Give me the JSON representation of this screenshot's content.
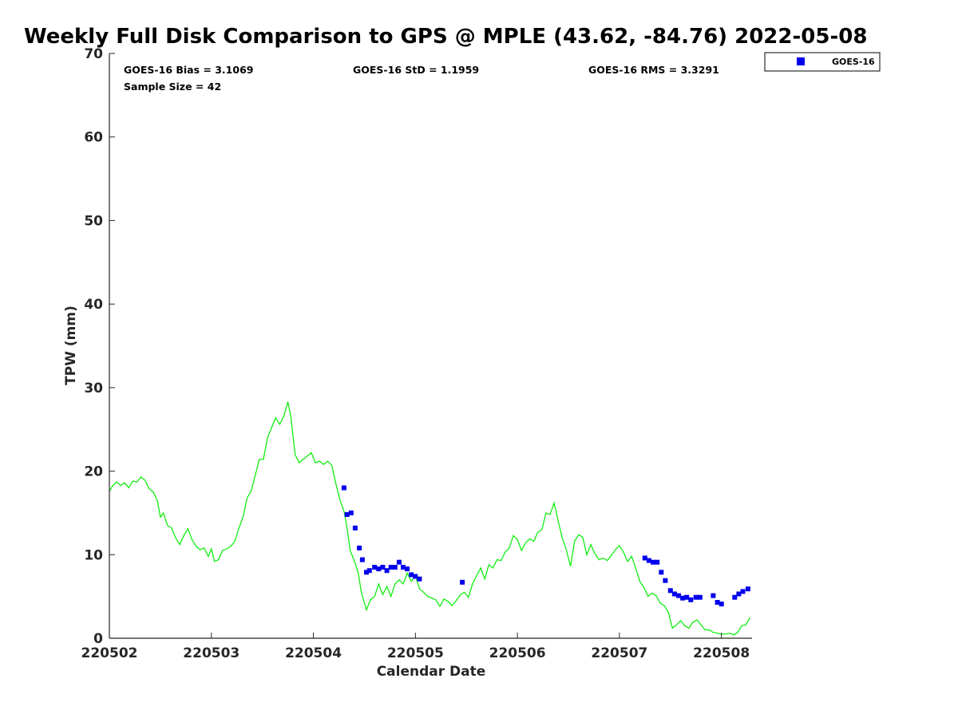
{
  "chart_data": {
    "type": "line",
    "title": "Weekly Full Disk Comparison to GPS @ MPLE (43.62, -84.76) 2022-05-08",
    "xlabel": "Calendar Date",
    "ylabel": "TPW (mm)",
    "xlim": [
      220502.0,
      220508.3
    ],
    "ylim": [
      0,
      70
    ],
    "x_ticks": [
      220502,
      220503,
      220504,
      220505,
      220506,
      220507,
      220508
    ],
    "x_tick_labels": [
      "220502",
      "220503",
      "220504",
      "220505",
      "220506",
      "220507",
      "220508"
    ],
    "y_ticks": [
      0,
      10,
      20,
      30,
      40,
      50,
      60,
      70
    ],
    "y_tick_labels": [
      "0",
      "10",
      "20",
      "30",
      "40",
      "50",
      "60",
      "70"
    ],
    "grid": false,
    "stats": {
      "bias": "GOES-16 Bias = 3.1069",
      "std": "GOES-16 StD = 1.1959",
      "rms": "GOES-16 RMS = 3.3291",
      "sample": "Sample Size = 42"
    },
    "legend": {
      "position": "top-right-outside",
      "label": "GOES-16"
    },
    "series": [
      {
        "name": "GPS",
        "kind": "line",
        "color": "#00ee00",
        "points": [
          [
            220502.0,
            17.6
          ],
          [
            220502.03,
            18.2
          ],
          [
            220502.07,
            18.7
          ],
          [
            220502.11,
            18.3
          ],
          [
            220502.15,
            18.6
          ],
          [
            220502.19,
            18.0
          ],
          [
            220502.23,
            18.8
          ],
          [
            220502.27,
            18.7
          ],
          [
            220502.31,
            19.3
          ],
          [
            220502.35,
            18.9
          ],
          [
            220502.39,
            17.9
          ],
          [
            220502.43,
            17.5
          ],
          [
            220502.47,
            16.5
          ],
          [
            220502.5,
            14.5
          ],
          [
            220502.53,
            15.0
          ],
          [
            220502.57,
            13.5
          ],
          [
            220502.61,
            13.2
          ],
          [
            220502.65,
            12.0
          ],
          [
            220502.69,
            11.2
          ],
          [
            220502.73,
            12.3
          ],
          [
            220502.77,
            13.1
          ],
          [
            220502.81,
            11.8
          ],
          [
            220502.85,
            11.0
          ],
          [
            220502.89,
            10.6
          ],
          [
            220502.93,
            10.8
          ],
          [
            220502.97,
            9.8
          ],
          [
            220503.0,
            10.7
          ],
          [
            220503.03,
            9.2
          ],
          [
            220503.07,
            9.4
          ],
          [
            220503.11,
            10.5
          ],
          [
            220503.15,
            10.7
          ],
          [
            220503.19,
            11.0
          ],
          [
            220503.23,
            11.6
          ],
          [
            220503.27,
            13.2
          ],
          [
            220503.31,
            14.5
          ],
          [
            220503.35,
            16.8
          ],
          [
            220503.39,
            17.6
          ],
          [
            220503.43,
            19.5
          ],
          [
            220503.47,
            21.4
          ],
          [
            220503.51,
            21.4
          ],
          [
            220503.55,
            24.0
          ],
          [
            220503.59,
            25.2
          ],
          [
            220503.63,
            26.4
          ],
          [
            220503.67,
            25.6
          ],
          [
            220503.71,
            26.6
          ],
          [
            220503.75,
            28.3
          ],
          [
            220503.78,
            26.5
          ],
          [
            220503.82,
            22.0
          ],
          [
            220503.86,
            21.0
          ],
          [
            220503.9,
            21.4
          ],
          [
            220503.94,
            21.8
          ],
          [
            220503.98,
            22.2
          ],
          [
            220504.02,
            21.0
          ],
          [
            220504.06,
            21.2
          ],
          [
            220504.1,
            20.8
          ],
          [
            220504.14,
            21.2
          ],
          [
            220504.18,
            20.7
          ],
          [
            220504.22,
            18.5
          ],
          [
            220504.26,
            16.6
          ],
          [
            220504.3,
            15.2
          ],
          [
            220504.33,
            13.2
          ],
          [
            220504.36,
            10.5
          ],
          [
            220504.4,
            9.3
          ],
          [
            220504.44,
            7.8
          ],
          [
            220504.47,
            5.5
          ],
          [
            220504.52,
            3.4
          ],
          [
            220504.56,
            4.6
          ],
          [
            220504.6,
            5.0
          ],
          [
            220504.64,
            6.5
          ],
          [
            220504.68,
            5.2
          ],
          [
            220504.72,
            6.2
          ],
          [
            220504.76,
            5.0
          ],
          [
            220504.8,
            6.5
          ],
          [
            220504.84,
            7.0
          ],
          [
            220504.88,
            6.5
          ],
          [
            220504.92,
            7.8
          ],
          [
            220504.96,
            6.8
          ],
          [
            220505.0,
            7.5
          ],
          [
            220505.04,
            5.9
          ],
          [
            220505.08,
            5.5
          ],
          [
            220505.12,
            5.0
          ],
          [
            220505.16,
            4.8
          ],
          [
            220505.2,
            4.6
          ],
          [
            220505.24,
            3.8
          ],
          [
            220505.28,
            4.7
          ],
          [
            220505.32,
            4.4
          ],
          [
            220505.36,
            3.9
          ],
          [
            220505.4,
            4.5
          ],
          [
            220505.44,
            5.2
          ],
          [
            220505.48,
            5.5
          ],
          [
            220505.52,
            4.9
          ],
          [
            220505.56,
            6.5
          ],
          [
            220505.6,
            7.5
          ],
          [
            220505.64,
            8.4
          ],
          [
            220505.68,
            7.1
          ],
          [
            220505.72,
            8.8
          ],
          [
            220505.76,
            8.4
          ],
          [
            220505.8,
            9.4
          ],
          [
            220505.84,
            9.3
          ],
          [
            220505.88,
            10.3
          ],
          [
            220505.92,
            10.8
          ],
          [
            220505.96,
            12.3
          ],
          [
            220506.0,
            11.8
          ],
          [
            220506.04,
            10.5
          ],
          [
            220506.08,
            11.4
          ],
          [
            220506.12,
            11.9
          ],
          [
            220506.16,
            11.6
          ],
          [
            220506.2,
            12.7
          ],
          [
            220506.24,
            13.0
          ],
          [
            220506.28,
            15.0
          ],
          [
            220506.32,
            14.8
          ],
          [
            220506.36,
            16.2
          ],
          [
            220506.4,
            14.0
          ],
          [
            220506.44,
            12.0
          ],
          [
            220506.48,
            10.6
          ],
          [
            220506.52,
            8.6
          ],
          [
            220506.56,
            11.6
          ],
          [
            220506.6,
            12.4
          ],
          [
            220506.64,
            12.1
          ],
          [
            220506.68,
            10.0
          ],
          [
            220506.72,
            11.2
          ],
          [
            220506.76,
            10.1
          ],
          [
            220506.8,
            9.4
          ],
          [
            220506.84,
            9.6
          ],
          [
            220506.88,
            9.3
          ],
          [
            220506.92,
            9.9
          ],
          [
            220506.96,
            10.6
          ],
          [
            220507.0,
            11.1
          ],
          [
            220507.04,
            10.3
          ],
          [
            220507.08,
            9.2
          ],
          [
            220507.12,
            9.8
          ],
          [
            220507.16,
            8.4
          ],
          [
            220507.2,
            6.8
          ],
          [
            220507.24,
            6.1
          ],
          [
            220507.28,
            5.0
          ],
          [
            220507.32,
            5.4
          ],
          [
            220507.36,
            5.1
          ],
          [
            220507.4,
            4.2
          ],
          [
            220507.44,
            3.9
          ],
          [
            220507.48,
            3.1
          ],
          [
            220507.52,
            1.2
          ],
          [
            220507.56,
            1.6
          ],
          [
            220507.6,
            2.1
          ],
          [
            220507.64,
            1.5
          ],
          [
            220507.68,
            1.2
          ],
          [
            220507.72,
            1.9
          ],
          [
            220507.76,
            2.2
          ],
          [
            220507.8,
            1.6
          ],
          [
            220507.84,
            1.0
          ],
          [
            220507.88,
            1.0
          ],
          [
            220507.92,
            0.7
          ],
          [
            220507.96,
            0.6
          ],
          [
            220508.0,
            0.5
          ],
          [
            220508.04,
            0.5
          ],
          [
            220508.08,
            0.6
          ],
          [
            220508.12,
            0.4
          ],
          [
            220508.16,
            0.7
          ],
          [
            220508.2,
            1.5
          ],
          [
            220508.24,
            1.6
          ],
          [
            220508.28,
            2.5
          ]
        ]
      },
      {
        "name": "GOES-16",
        "kind": "scatter",
        "color": "#0000ee",
        "points": [
          [
            220504.3,
            18.0
          ],
          [
            220504.33,
            14.8
          ],
          [
            220504.37,
            15.0
          ],
          [
            220504.41,
            13.2
          ],
          [
            220504.45,
            10.8
          ],
          [
            220504.48,
            9.4
          ],
          [
            220504.52,
            7.9
          ],
          [
            220504.55,
            8.1
          ],
          [
            220504.6,
            8.5
          ],
          [
            220504.64,
            8.3
          ],
          [
            220504.68,
            8.5
          ],
          [
            220504.72,
            8.1
          ],
          [
            220504.76,
            8.5
          ],
          [
            220504.8,
            8.5
          ],
          [
            220504.84,
            9.1
          ],
          [
            220504.88,
            8.5
          ],
          [
            220504.92,
            8.3
          ],
          [
            220504.96,
            7.6
          ],
          [
            220505.0,
            7.4
          ],
          [
            220505.04,
            7.1
          ],
          [
            220505.46,
            6.7
          ],
          [
            220507.25,
            9.6
          ],
          [
            220507.29,
            9.3
          ],
          [
            220507.33,
            9.1
          ],
          [
            220507.37,
            9.1
          ],
          [
            220507.41,
            7.9
          ],
          [
            220507.45,
            6.9
          ],
          [
            220507.5,
            5.7
          ],
          [
            220507.54,
            5.3
          ],
          [
            220507.58,
            5.1
          ],
          [
            220507.62,
            4.8
          ],
          [
            220507.66,
            4.9
          ],
          [
            220507.7,
            4.6
          ],
          [
            220507.75,
            4.9
          ],
          [
            220507.79,
            4.9
          ],
          [
            220507.92,
            5.1
          ],
          [
            220507.96,
            4.3
          ],
          [
            220508.0,
            4.1
          ],
          [
            220508.13,
            4.9
          ],
          [
            220508.17,
            5.3
          ],
          [
            220508.21,
            5.6
          ],
          [
            220508.26,
            5.9
          ]
        ]
      }
    ]
  }
}
